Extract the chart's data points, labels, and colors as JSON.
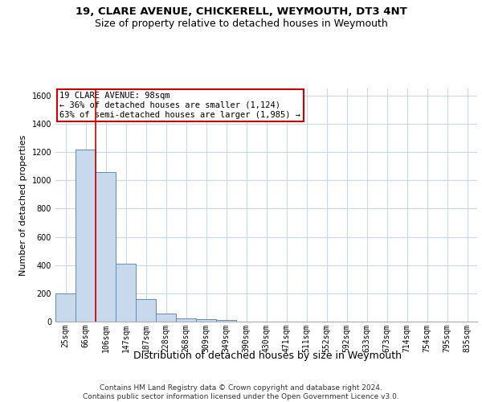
{
  "title1": "19, CLARE AVENUE, CHICKERELL, WEYMOUTH, DT3 4NT",
  "title2": "Size of property relative to detached houses in Weymouth",
  "xlabel": "Distribution of detached houses by size in Weymouth",
  "ylabel": "Number of detached properties",
  "categories": [
    "25sqm",
    "66sqm",
    "106sqm",
    "147sqm",
    "187sqm",
    "228sqm",
    "268sqm",
    "309sqm",
    "349sqm",
    "390sqm",
    "430sqm",
    "471sqm",
    "511sqm",
    "552sqm",
    "592sqm",
    "633sqm",
    "673sqm",
    "714sqm",
    "754sqm",
    "795sqm",
    "835sqm"
  ],
  "values": [
    200,
    1220,
    1060,
    410,
    160,
    55,
    25,
    15,
    10,
    0,
    0,
    0,
    0,
    0,
    0,
    0,
    0,
    0,
    0,
    0,
    0
  ],
  "bar_color": "#c9d9ec",
  "bar_edge_color": "#5b8db8",
  "highlight_line_color": "#cc0000",
  "annotation_text": "19 CLARE AVENUE: 98sqm\n← 36% of detached houses are smaller (1,124)\n63% of semi-detached houses are larger (1,985) →",
  "annotation_box_color": "#ffffff",
  "annotation_box_edge_color": "#cc0000",
  "ylim": [
    0,
    1650
  ],
  "yticks": [
    0,
    200,
    400,
    600,
    800,
    1000,
    1200,
    1400,
    1600
  ],
  "footer": "Contains HM Land Registry data © Crown copyright and database right 2024.\nContains public sector information licensed under the Open Government Licence v3.0.",
  "bg_color": "#ffffff",
  "grid_color": "#c8d8e8",
  "title1_fontsize": 9.5,
  "title2_fontsize": 9,
  "xlabel_fontsize": 9,
  "ylabel_fontsize": 8,
  "tick_fontsize": 7,
  "annotation_fontsize": 7.5,
  "footer_fontsize": 6.5
}
